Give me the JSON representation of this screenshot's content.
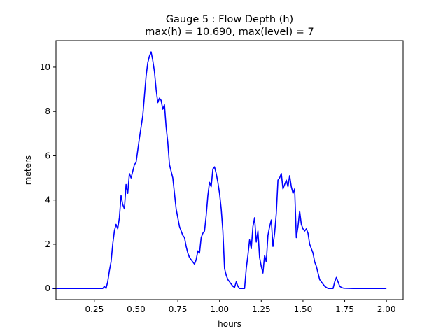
{
  "chart_data": {
    "type": "line",
    "title_line1": "Gauge 5 : Flow Depth (h)",
    "title_line2": "max(h) =  10.690,    max(level) = 7",
    "xlabel": "hours",
    "ylabel": "meters",
    "xlim": [
      0.02,
      2.1
    ],
    "ylim": [
      -0.5,
      11.2
    ],
    "xticks": [
      0.25,
      0.5,
      0.75,
      1.0,
      1.25,
      1.5,
      1.75,
      2.0
    ],
    "xtick_labels": [
      "0.25",
      "0.50",
      "0.75",
      "1.00",
      "1.25",
      "1.50",
      "1.75",
      "2.00"
    ],
    "yticks": [
      0,
      2,
      4,
      6,
      8,
      10
    ],
    "ytick_labels": [
      "0",
      "2",
      "4",
      "6",
      "8",
      "10"
    ],
    "grid": false,
    "series": [
      {
        "color": "#0000ff",
        "x": [
          0.0,
          0.3,
          0.31,
          0.32,
          0.33,
          0.34,
          0.35,
          0.36,
          0.37,
          0.38,
          0.39,
          0.4,
          0.41,
          0.42,
          0.43,
          0.44,
          0.45,
          0.46,
          0.47,
          0.48,
          0.49,
          0.5,
          0.52,
          0.54,
          0.56,
          0.57,
          0.58,
          0.59,
          0.6,
          0.61,
          0.62,
          0.63,
          0.64,
          0.65,
          0.66,
          0.67,
          0.68,
          0.69,
          0.7,
          0.71,
          0.72,
          0.73,
          0.74,
          0.75,
          0.76,
          0.77,
          0.78,
          0.79,
          0.8,
          0.81,
          0.82,
          0.83,
          0.84,
          0.85,
          0.86,
          0.87,
          0.88,
          0.89,
          0.9,
          0.91,
          0.92,
          0.93,
          0.94,
          0.95,
          0.96,
          0.97,
          0.98,
          0.99,
          1.0,
          1.01,
          1.02,
          1.03,
          1.04,
          1.05,
          1.06,
          1.07,
          1.08,
          1.09,
          1.1,
          1.11,
          1.12,
          1.13,
          1.14,
          1.15,
          1.16,
          1.17,
          1.18,
          1.19,
          1.2,
          1.21,
          1.22,
          1.23,
          1.24,
          1.25,
          1.26,
          1.27,
          1.28,
          1.29,
          1.3,
          1.31,
          1.32,
          1.33,
          1.34,
          1.35,
          1.36,
          1.37,
          1.38,
          1.39,
          1.4,
          1.41,
          1.42,
          1.43,
          1.44,
          1.45,
          1.46,
          1.47,
          1.48,
          1.49,
          1.5,
          1.51,
          1.52,
          1.53,
          1.54,
          1.55,
          1.56,
          1.57,
          1.58,
          1.59,
          1.6,
          1.61,
          1.62,
          1.63,
          1.64,
          1.65,
          1.66,
          1.67,
          1.68,
          1.69,
          1.7,
          1.71,
          1.72,
          1.73,
          1.74,
          1.75,
          1.8,
          1.9,
          2.0
        ],
        "y": [
          0.0,
          0.0,
          0.1,
          0.0,
          0.3,
          0.8,
          1.2,
          2.0,
          2.6,
          2.9,
          2.7,
          3.2,
          4.2,
          3.8,
          3.6,
          4.7,
          4.3,
          5.2,
          5.0,
          5.3,
          5.6,
          5.7,
          6.8,
          7.8,
          9.6,
          10.2,
          10.5,
          10.69,
          10.3,
          9.8,
          9.0,
          8.4,
          8.6,
          8.5,
          8.1,
          8.3,
          7.3,
          6.6,
          5.6,
          5.3,
          5.0,
          4.3,
          3.6,
          3.2,
          2.8,
          2.6,
          2.4,
          2.3,
          1.9,
          1.6,
          1.4,
          1.3,
          1.2,
          1.1,
          1.3,
          1.7,
          1.6,
          2.3,
          2.5,
          2.6,
          3.3,
          4.2,
          4.8,
          4.6,
          5.4,
          5.5,
          5.2,
          4.8,
          4.3,
          3.6,
          2.6,
          0.9,
          0.6,
          0.4,
          0.3,
          0.2,
          0.1,
          0.05,
          0.3,
          0.1,
          0.0,
          0.0,
          0.0,
          0.0,
          0.9,
          1.5,
          2.2,
          1.8,
          2.8,
          3.2,
          2.1,
          2.6,
          1.4,
          1.0,
          0.7,
          1.5,
          1.2,
          2.4,
          2.8,
          3.1,
          1.9,
          2.5,
          3.4,
          4.9,
          5.0,
          5.2,
          4.5,
          4.7,
          4.9,
          4.6,
          5.1,
          4.6,
          4.3,
          4.5,
          2.3,
          2.8,
          3.5,
          2.9,
          2.7,
          2.6,
          2.7,
          2.5,
          2.0,
          1.8,
          1.6,
          1.2,
          1.0,
          0.7,
          0.4,
          0.3,
          0.2,
          0.1,
          0.05,
          0.0,
          0.0,
          0.0,
          0.0,
          0.3,
          0.5,
          0.3,
          0.1,
          0.05,
          0.02,
          0.01,
          0.0,
          0.0,
          0.0
        ]
      }
    ]
  }
}
